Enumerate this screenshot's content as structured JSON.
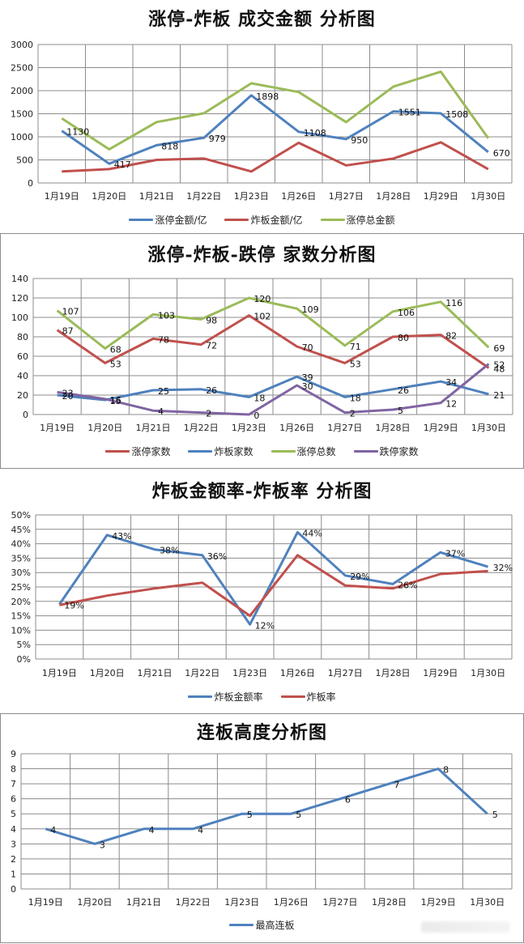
{
  "chart_data": [
    {
      "id": "chart1",
      "type": "line",
      "title": "涨停-炸板 成交金额 分析图",
      "xlabel": "",
      "ylabel": "",
      "categories": [
        "1月19日",
        "1月20日",
        "1月21日",
        "1月22日",
        "1月23日",
        "1月26日",
        "1月27日",
        "1月28日",
        "1月29日",
        "1月30日"
      ],
      "ylim": [
        0,
        3000
      ],
      "yticks": [
        0,
        500,
        1000,
        1500,
        2000,
        2500,
        3000
      ],
      "ytick_labels": [
        "0",
        "500",
        "1000",
        "1500",
        "2000",
        "2500",
        "3000"
      ],
      "grid": true,
      "legend_position": "bottom",
      "series": [
        {
          "name": "涨停金额/亿",
          "color": "#4f81bd",
          "values": [
            1130,
            417,
            818,
            979,
            1898,
            1108,
            950,
            1551,
            1508,
            670
          ],
          "labels": [
            "1130",
            "417",
            "818",
            "979",
            "1898",
            "1108",
            "950",
            "1551",
            "1508",
            "670"
          ]
        },
        {
          "name": "炸板金额/亿",
          "color": "#c0504d",
          "values": [
            250,
            300,
            500,
            530,
            250,
            870,
            380,
            530,
            880,
            300
          ],
          "labels": null
        },
        {
          "name": "涨停总金额",
          "color": "#9bbb59",
          "values": [
            1400,
            730,
            1320,
            1510,
            2160,
            1970,
            1320,
            2090,
            2410,
            970
          ],
          "labels": null
        }
      ]
    },
    {
      "id": "chart2",
      "type": "line",
      "title": "涨停-炸板-跌停 家数分析图",
      "xlabel": "",
      "ylabel": "",
      "categories": [
        "1月19日",
        "1月20日",
        "1月21日",
        "1月22日",
        "1月23日",
        "1月26日",
        "1月27日",
        "1月28日",
        "1月29日",
        "1月30日"
      ],
      "ylim": [
        0,
        140
      ],
      "yticks": [
        0,
        20,
        40,
        60,
        80,
        100,
        120,
        140
      ],
      "ytick_labels": [
        "0",
        "20",
        "40",
        "60",
        "80",
        "100",
        "120",
        "140"
      ],
      "grid": true,
      "legend_position": "bottom",
      "series": [
        {
          "name": "涨停家数",
          "color": "#c0504d",
          "values": [
            87,
            53,
            78,
            72,
            102,
            70,
            53,
            80,
            82,
            48
          ],
          "labels": [
            "87",
            "53",
            "78",
            "72",
            "102",
            "70",
            "53",
            "80",
            "82",
            "48"
          ]
        },
        {
          "name": "炸板家数",
          "color": "#4f81bd",
          "values": [
            20,
            15,
            25,
            26,
            18,
            39,
            18,
            26,
            34,
            21
          ],
          "labels": [
            "20",
            "15",
            "25",
            "26",
            "18",
            "39",
            "18",
            "26",
            "34",
            "21"
          ]
        },
        {
          "name": "涨停总数",
          "color": "#9bbb59",
          "values": [
            107,
            68,
            103,
            98,
            120,
            109,
            71,
            106,
            116,
            69
          ],
          "labels": [
            "107",
            "68",
            "103",
            "98",
            "120",
            "109",
            "71",
            "106",
            "116",
            "69"
          ]
        },
        {
          "name": "跌停家数",
          "color": "#8064a2",
          "values": [
            23,
            16,
            4,
            2,
            0,
            30,
            2,
            5,
            12,
            52
          ],
          "labels": [
            "23",
            "16",
            "4",
            "2",
            "0",
            "30",
            "2",
            "5",
            "12",
            "52"
          ]
        }
      ]
    },
    {
      "id": "chart3",
      "type": "line",
      "title": "炸板金额率-炸板率 分析图",
      "xlabel": "",
      "ylabel": "",
      "categories": [
        "1月19日",
        "1月20日",
        "1月21日",
        "1月22日",
        "1月23日",
        "1月26日",
        "1月27日",
        "1月28日",
        "1月29日",
        "1月30日"
      ],
      "ylim": [
        0,
        50
      ],
      "yticks": [
        0,
        5,
        10,
        15,
        20,
        25,
        30,
        35,
        40,
        45,
        50
      ],
      "ytick_labels": [
        "0%",
        "5%",
        "10%",
        "15%",
        "20%",
        "25%",
        "30%",
        "35%",
        "40%",
        "45%",
        "50%"
      ],
      "grid": true,
      "legend_position": "bottom",
      "series": [
        {
          "name": "炸板金额率",
          "color": "#4f81bd",
          "values": [
            19,
            43,
            38,
            36,
            12,
            44,
            29,
            26,
            37,
            32
          ],
          "labels": [
            "19%",
            "43%",
            "38%",
            "36%",
            "12%",
            "44%",
            "29%",
            "26%",
            "37%",
            "32%"
          ]
        },
        {
          "name": "炸板率",
          "color": "#c0504d",
          "values": [
            18.7,
            22,
            24.5,
            26.5,
            15,
            36,
            25.5,
            24.5,
            29.5,
            30.5
          ],
          "labels": null
        }
      ]
    },
    {
      "id": "chart4",
      "type": "line",
      "title": "连板高度分析图",
      "xlabel": "",
      "ylabel": "",
      "categories": [
        "1月19日",
        "1月20日",
        "1月21日",
        "1月22日",
        "1月23日",
        "1月26日",
        "1月27日",
        "1月28日",
        "1月29日",
        "1月30日"
      ],
      "ylim": [
        0,
        9
      ],
      "yticks": [
        0,
        1,
        2,
        3,
        4,
        5,
        6,
        7,
        8,
        9
      ],
      "ytick_labels": [
        "0",
        "1",
        "2",
        "3",
        "4",
        "5",
        "6",
        "7",
        "8",
        "9"
      ],
      "grid": true,
      "legend_position": "bottom",
      "series": [
        {
          "name": "最高连板",
          "color": "#4f81bd",
          "values": [
            4,
            3,
            4,
            4,
            5,
            5,
            6,
            7,
            8,
            5
          ],
          "labels": [
            "4",
            "3",
            "4",
            "4",
            "5",
            "5",
            "6",
            "7",
            "8",
            "5"
          ]
        }
      ]
    }
  ]
}
